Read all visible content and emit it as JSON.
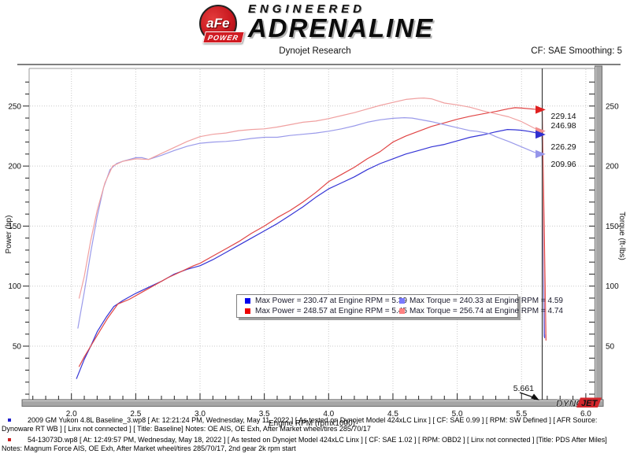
{
  "header": {
    "logo": {
      "circle_text": "aFe",
      "banner_text": "POWER",
      "line1": "ENGINEERED",
      "line2": "ADRENALINE"
    },
    "subtitle": "Dynojet Research",
    "cf_text": "CF: SAE Smoothing: 5"
  },
  "chart_data": {
    "type": "line",
    "xlabel": "Engine RPM (rpmx1000)",
    "ylabel_left": "Power (hp)",
    "ylabel_right": "Torque (ft-lbs)",
    "xlim": [
      1.67,
      6.07
    ],
    "ylim": [
      0,
      281
    ],
    "x_ticks_major": [
      2.0,
      2.5,
      3.0,
      3.5,
      4.0,
      4.5,
      5.0,
      5.5,
      6.0
    ],
    "x_minor_step": 0.1,
    "y_ticks_major": [
      50,
      100,
      150,
      200,
      250
    ],
    "y_minor_step": 10,
    "grid": "dotted",
    "legend_position": "bottom-center",
    "cursor": {
      "rpm": 5.661,
      "label": "5.661"
    },
    "cursor_readouts": [
      {
        "value": "229.14",
        "series": "torque_modified",
        "color": "#f08c8c"
      },
      {
        "value": "246.98",
        "series": "power_modified",
        "color": "#e02020"
      },
      {
        "value": "226.29",
        "series": "power_baseline",
        "color": "#2f2fd0"
      },
      {
        "value": "209.96",
        "series": "torque_baseline",
        "color": "#9595ea"
      }
    ],
    "watermark": {
      "part1": "DYNO",
      "part2": "JET"
    },
    "series": [
      {
        "name": "power_baseline",
        "legend_label": "Max Power = 230.47 at Engine RPM = 5.39",
        "max_value": 230.47,
        "max_rpm": 5.39,
        "color": "#3535d6",
        "swatch_color": "#0000ee",
        "points": [
          [
            2.04,
            23
          ],
          [
            2.1,
            39
          ],
          [
            2.15,
            50
          ],
          [
            2.2,
            62
          ],
          [
            2.27,
            74
          ],
          [
            2.33,
            83
          ],
          [
            2.4,
            88
          ],
          [
            2.5,
            94
          ],
          [
            2.6,
            99
          ],
          [
            2.7,
            104
          ],
          [
            2.8,
            110
          ],
          [
            2.9,
            114
          ],
          [
            3.0,
            117
          ],
          [
            3.1,
            122
          ],
          [
            3.2,
            128
          ],
          [
            3.3,
            134
          ],
          [
            3.4,
            140
          ],
          [
            3.5,
            146
          ],
          [
            3.6,
            152
          ],
          [
            3.7,
            159
          ],
          [
            3.8,
            166
          ],
          [
            3.9,
            174
          ],
          [
            4.0,
            181
          ],
          [
            4.1,
            186
          ],
          [
            4.2,
            191
          ],
          [
            4.3,
            197
          ],
          [
            4.4,
            202
          ],
          [
            4.5,
            206
          ],
          [
            4.6,
            210
          ],
          [
            4.7,
            213
          ],
          [
            4.8,
            216
          ],
          [
            4.9,
            218
          ],
          [
            5.0,
            221
          ],
          [
            5.1,
            224
          ],
          [
            5.2,
            226
          ],
          [
            5.3,
            228.5
          ],
          [
            5.39,
            230.5
          ],
          [
            5.45,
            230.2
          ],
          [
            5.5,
            229.8
          ],
          [
            5.55,
            229
          ],
          [
            5.6,
            228
          ],
          [
            5.66,
            226.3
          ],
          [
            5.672,
            140
          ],
          [
            5.68,
            57
          ]
        ]
      },
      {
        "name": "power_modified",
        "legend_label": "Max Power = 248.57 at Engine RPM = 5.45",
        "max_value": 248.57,
        "max_rpm": 5.45,
        "color": "#e04545",
        "swatch_color": "#ee0000",
        "points": [
          [
            2.06,
            33
          ],
          [
            2.1,
            41
          ],
          [
            2.15,
            50
          ],
          [
            2.2,
            59
          ],
          [
            2.28,
            73
          ],
          [
            2.36,
            85
          ],
          [
            2.45,
            89
          ],
          [
            2.55,
            95
          ],
          [
            2.65,
            101
          ],
          [
            2.75,
            107
          ],
          [
            2.85,
            112
          ],
          [
            2.95,
            117
          ],
          [
            3.0,
            119
          ],
          [
            3.1,
            125
          ],
          [
            3.2,
            131
          ],
          [
            3.3,
            137
          ],
          [
            3.4,
            144
          ],
          [
            3.5,
            150
          ],
          [
            3.6,
            157
          ],
          [
            3.7,
            163
          ],
          [
            3.8,
            170
          ],
          [
            3.9,
            178
          ],
          [
            4.0,
            187
          ],
          [
            4.1,
            193
          ],
          [
            4.2,
            199
          ],
          [
            4.3,
            206
          ],
          [
            4.4,
            212
          ],
          [
            4.5,
            220
          ],
          [
            4.6,
            225
          ],
          [
            4.7,
            229
          ],
          [
            4.8,
            233
          ],
          [
            4.9,
            236
          ],
          [
            5.0,
            239
          ],
          [
            5.1,
            241.5
          ],
          [
            5.2,
            243.5
          ],
          [
            5.3,
            245.5
          ],
          [
            5.4,
            247.8
          ],
          [
            5.45,
            248.6
          ],
          [
            5.5,
            248.3
          ],
          [
            5.6,
            247.4
          ],
          [
            5.66,
            247
          ],
          [
            5.675,
            160
          ],
          [
            5.69,
            55
          ]
        ]
      },
      {
        "name": "torque_baseline",
        "legend_label": "Max Torque = 240.33 at Engine RPM = 4.59",
        "max_value": 240.33,
        "max_rpm": 4.59,
        "color": "#9a9aea",
        "swatch_color": "#7a7aff",
        "points": [
          [
            2.05,
            65
          ],
          [
            2.1,
            95
          ],
          [
            2.15,
            128
          ],
          [
            2.2,
            158
          ],
          [
            2.25,
            182
          ],
          [
            2.3,
            197
          ],
          [
            2.35,
            202
          ],
          [
            2.4,
            204
          ],
          [
            2.5,
            207
          ],
          [
            2.55,
            207
          ],
          [
            2.6,
            205.5
          ],
          [
            2.7,
            209
          ],
          [
            2.8,
            213
          ],
          [
            2.9,
            216.5
          ],
          [
            3.0,
            219
          ],
          [
            3.1,
            220
          ],
          [
            3.2,
            220.5
          ],
          [
            3.3,
            221.5
          ],
          [
            3.4,
            223
          ],
          [
            3.5,
            224
          ],
          [
            3.6,
            224
          ],
          [
            3.7,
            225.5
          ],
          [
            3.8,
            226.5
          ],
          [
            3.9,
            227.5
          ],
          [
            4.0,
            229
          ],
          [
            4.1,
            231
          ],
          [
            4.2,
            233.5
          ],
          [
            4.3,
            236.5
          ],
          [
            4.4,
            238.5
          ],
          [
            4.5,
            239.8
          ],
          [
            4.59,
            240.3
          ],
          [
            4.65,
            240
          ],
          [
            4.7,
            239
          ],
          [
            4.8,
            237
          ],
          [
            4.9,
            234.5
          ],
          [
            5.0,
            232
          ],
          [
            5.1,
            229.5
          ],
          [
            5.15,
            229
          ],
          [
            5.25,
            227
          ],
          [
            5.3,
            224.5
          ],
          [
            5.4,
            220.5
          ],
          [
            5.5,
            216
          ],
          [
            5.6,
            211.5
          ],
          [
            5.66,
            210
          ],
          [
            5.668,
            130
          ],
          [
            5.675,
            58
          ]
        ]
      },
      {
        "name": "torque_modified",
        "legend_label": "Max Torque = 256.74 at Engine RPM = 4.74",
        "max_value": 256.74,
        "max_rpm": 4.74,
        "color": "#f0a0a0",
        "swatch_color": "#ff8080",
        "points": [
          [
            2.06,
            90
          ],
          [
            2.1,
            108
          ],
          [
            2.15,
            138
          ],
          [
            2.2,
            163
          ],
          [
            2.26,
            186
          ],
          [
            2.32,
            200
          ],
          [
            2.4,
            204
          ],
          [
            2.5,
            206
          ],
          [
            2.6,
            205.5
          ],
          [
            2.7,
            210.5
          ],
          [
            2.8,
            215.5
          ],
          [
            2.9,
            220.5
          ],
          [
            3.0,
            224.5
          ],
          [
            3.1,
            226.5
          ],
          [
            3.2,
            227.5
          ],
          [
            3.3,
            229.5
          ],
          [
            3.4,
            230.5
          ],
          [
            3.5,
            231
          ],
          [
            3.6,
            232.5
          ],
          [
            3.7,
            234.5
          ],
          [
            3.8,
            236.5
          ],
          [
            3.9,
            237.5
          ],
          [
            4.0,
            239.5
          ],
          [
            4.1,
            242
          ],
          [
            4.2,
            244.5
          ],
          [
            4.3,
            247.5
          ],
          [
            4.4,
            250.5
          ],
          [
            4.5,
            253
          ],
          [
            4.6,
            255.5
          ],
          [
            4.7,
            256.5
          ],
          [
            4.74,
            256.7
          ],
          [
            4.8,
            256
          ],
          [
            4.9,
            252.5
          ],
          [
            5.0,
            251
          ],
          [
            5.1,
            249
          ],
          [
            5.2,
            246
          ],
          [
            5.3,
            243.5
          ],
          [
            5.4,
            241
          ],
          [
            5.5,
            237
          ],
          [
            5.6,
            231.5
          ],
          [
            5.66,
            229.1
          ],
          [
            5.67,
            150
          ],
          [
            5.685,
            60
          ]
        ]
      }
    ]
  },
  "legend_order": [
    "power_baseline",
    "torque_baseline",
    "power_modified",
    "torque_modified"
  ],
  "footer": {
    "entries": [
      {
        "bullet_color": "#2222cc",
        "text": "2009 GM Yukon 4.8L Baseline_3.wp8 [ At: 12:21:24 PM, Wednesday, May 11, 2022 ] [ As tested on Dynojet Model 424xLC Linx ] [ CF: SAE 0.99 ] [ RPM: SW Defined ] [ AFR Source: Dynoware RT WB ] [ Linx not connected ] [ Title: Baseline]  Notes: OE AIS, OE Exh, After Market wheel/tires 285/70/17"
      },
      {
        "bullet_color": "#cc2222",
        "text": "54-13073D.wp8 [ At: 12:49:57 PM, Wednesday, May 18, 2022 ] [ As tested on Dynojet Model 424xLC Linx ] [ CF: SAE 1.02 ] [ RPM: OBD2 ] [ Linx not connected ] [Title: PDS After Miles]  Notes: Magnum Force  AIS, OE Exh, After Market wheel/tires 285/70/17, 2nd gear 2k rpm start"
      }
    ]
  }
}
